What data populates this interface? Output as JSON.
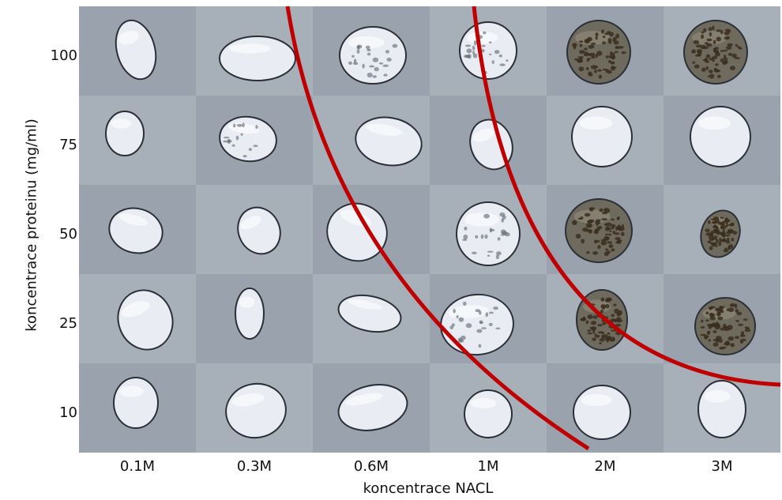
{
  "axes": {
    "x_label": "koncentrace NACL",
    "y_label": "koncentrace proteinu (mg/ml)",
    "x_ticks": [
      "0.1M",
      "0.3M",
      "0.6M",
      "1M",
      "2M",
      "3M"
    ],
    "y_ticks": [
      "100",
      "75",
      "50",
      "25",
      "10"
    ]
  },
  "colors": {
    "boundary_curve": "#c00000",
    "cell_background": "#9aa3ae",
    "drop": "#e9edf3",
    "crystal": "#3b2e1f"
  },
  "grid": {
    "rows": 5,
    "cols": 6,
    "cells": [
      [
        "clear-drop",
        "clear-drop",
        "small-crystals",
        "small-crystals",
        "dense-precipitate",
        "dense-precipitate"
      ],
      [
        "clear-drop",
        "crystal-clusters",
        "clear-drop",
        "clear-drop",
        "clear-drop",
        "clear-drop"
      ],
      [
        "clear-drop",
        "clear-drop",
        "clear-drop",
        "small-crystals",
        "dense-precipitate",
        "dense-precipitate"
      ],
      [
        "clear-drop",
        "clear-drop",
        "clear-drop",
        "small-crystals",
        "dense-precipitate",
        "dense-precipitate"
      ],
      [
        "clear-drop",
        "clear-drop",
        "clear-drop",
        "clear-drop",
        "clear-drop",
        "clear-drop"
      ]
    ]
  }
}
